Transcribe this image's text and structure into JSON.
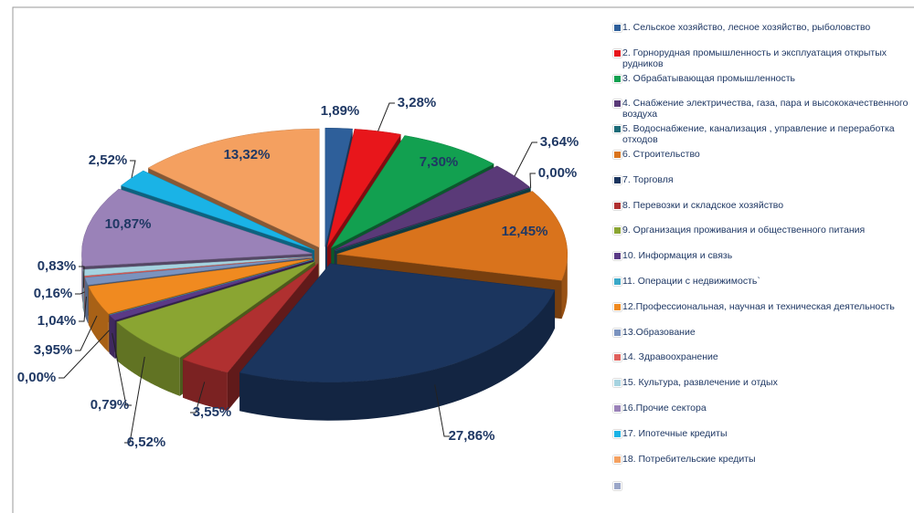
{
  "chart_data": {
    "type": "pie",
    "categories": [
      "1. Сельское хозяйство, лесное хозяйство, рыболовство",
      "2. Горнорудная промышленность и эксплуатация открытых рудников",
      "3. Обрабатывающая промышленность",
      "4. Снабжение электричества, газа, пара и высококачественного воздуха",
      "5. Водоснабжение, канализация , управление и переработка отходов",
      "6. Строительство",
      "7. Торговля",
      "8. Перевозки и складское хозяйство",
      "9. Организация проживания и общественного питания",
      "10. Информация и связь",
      "11. Операции с недвижимость`",
      "12.Профессиональная, научная и техническая деятельность",
      "13.Образование",
      "14. Здравоохранение",
      "15. Культура, развлечение и отдых",
      "16.Прочие сектора",
      "17. Ипотечные кредиты",
      "18. Потребительские кредиты"
    ],
    "values": [
      1.89,
      3.28,
      7.3,
      3.64,
      0.0,
      12.45,
      27.86,
      3.55,
      6.52,
      0.79,
      0.0,
      3.95,
      1.04,
      0.16,
      0.83,
      10.87,
      2.52,
      13.32
    ],
    "value_labels": [
      "1,89%",
      "3,28%",
      "7,30%",
      "3,64%",
      "0,00%",
      "12,45%",
      "27,86%",
      "3,55%",
      "6,52%",
      "0,79%",
      "0,00%",
      "3,95%",
      "1,04%",
      "0,16%",
      "0,83%",
      "10,87%",
      "2,52%",
      "13,32%"
    ],
    "colors": [
      "#2e5f9a",
      "#e8161b",
      "#12a050",
      "#5a3a78",
      "#1c6b78",
      "#d9731c",
      "#1b355e",
      "#b03030",
      "#8aa532",
      "#5a3a86",
      "#3aa8c8",
      "#f08a20",
      "#7b93bf",
      "#e0605c",
      "#a6d3e0",
      "#9a82b8",
      "#1ab3e6",
      "#f4a060"
    ]
  }
}
